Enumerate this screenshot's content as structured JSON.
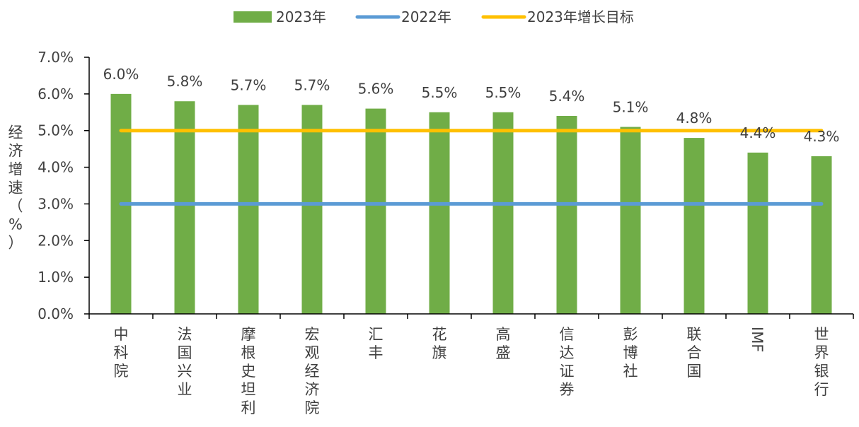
{
  "chart_data": {
    "type": "bar",
    "title": "",
    "ylabel": "经济增速（%）",
    "xlabel": "",
    "ylim": [
      0,
      7
    ],
    "yticks": [
      0,
      1,
      2,
      3,
      4,
      5,
      6,
      7
    ],
    "ytick_labels": [
      "0.0%",
      "1.0%",
      "2.0%",
      "3.0%",
      "4.0%",
      "5.0%",
      "6.0%",
      "7.0%"
    ],
    "categories": [
      "中科院",
      "法国兴业",
      "摩根史坦利",
      "宏观经济院",
      "汇丰",
      "花旗",
      "高盛",
      "信达证券",
      "彭博社",
      "联合国",
      "IMF",
      "世界银行"
    ],
    "series": [
      {
        "name": "2023年",
        "type": "bar",
        "color": "#70AD47",
        "values": [
          6.0,
          5.8,
          5.7,
          5.7,
          5.6,
          5.5,
          5.5,
          5.4,
          5.1,
          4.8,
          4.4,
          4.3
        ],
        "data_labels": [
          "6.0%",
          "5.8%",
          "5.7%",
          "5.7%",
          "5.6%",
          "5.5%",
          "5.5%",
          "5.4%",
          "5.1%",
          "4.8%",
          "4.4%",
          "4.3%"
        ]
      },
      {
        "name": "2022年",
        "type": "line",
        "color": "#5B9BD5",
        "values": [
          3.0,
          3.0,
          3.0,
          3.0,
          3.0,
          3.0,
          3.0,
          3.0,
          3.0,
          3.0,
          3.0,
          3.0
        ]
      },
      {
        "name": "2023年增长目标",
        "type": "line",
        "color": "#FFC000",
        "values": [
          5.0,
          5.0,
          5.0,
          5.0,
          5.0,
          5.0,
          5.0,
          5.0,
          5.0,
          5.0,
          5.0,
          5.0
        ]
      }
    ],
    "grid": false,
    "legend_position": "top"
  }
}
